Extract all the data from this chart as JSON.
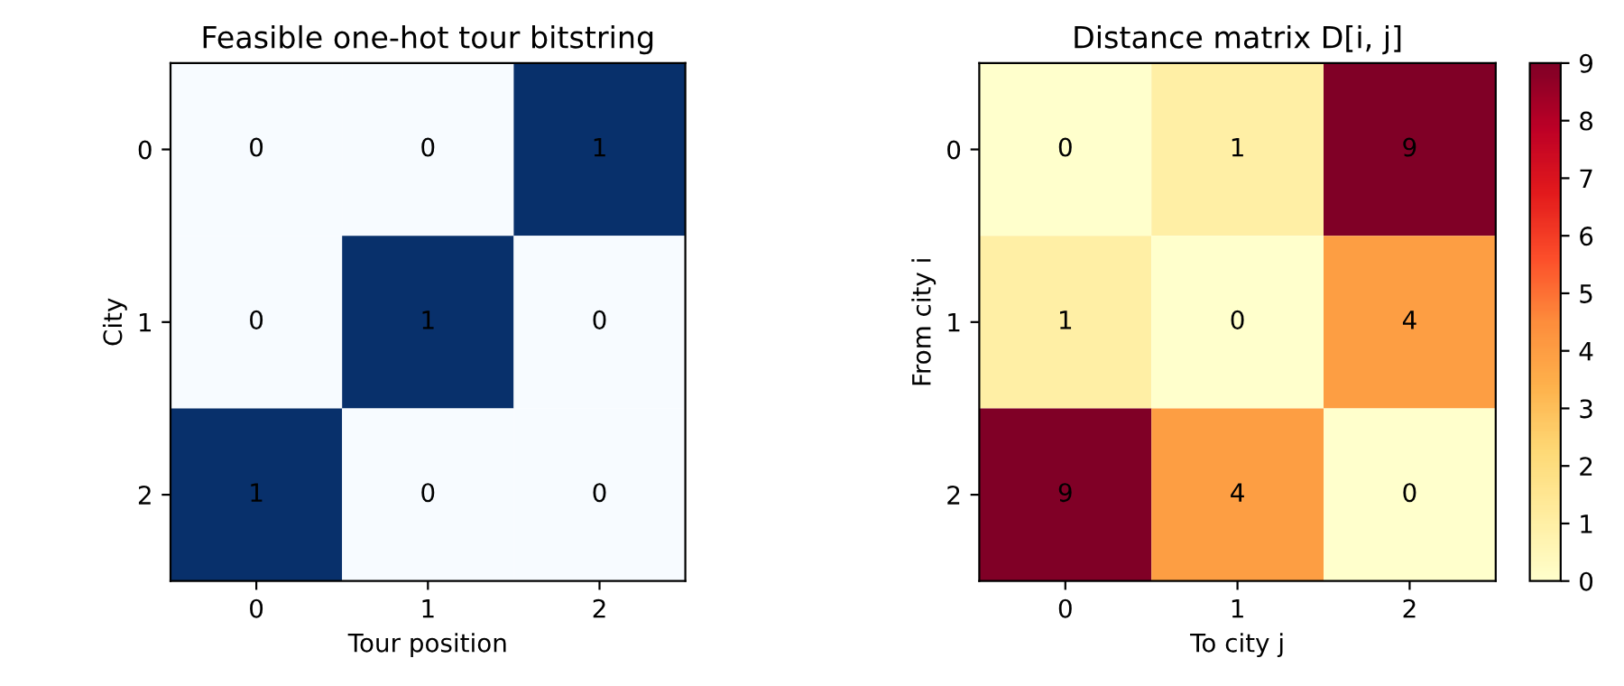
{
  "chart_data": [
    {
      "type": "heatmap",
      "title": "Feasible one-hot tour bitstring",
      "xlabel": "Tour position",
      "ylabel": "City",
      "categories": [
        "0",
        "1",
        "2"
      ],
      "y_categories": [
        "0",
        "1",
        "2"
      ],
      "cells": [
        [
          0,
          0,
          1
        ],
        [
          0,
          1,
          0
        ],
        [
          1,
          0,
          0
        ]
      ],
      "data_labels": true
    },
    {
      "type": "heatmap",
      "title": "Distance matrix D[i, j]",
      "xlabel": "To city j",
      "ylabel": "From city i",
      "categories": [
        "0",
        "1",
        "2"
      ],
      "y_categories": [
        "0",
        "1",
        "2"
      ],
      "cells": [
        [
          0,
          1,
          9
        ],
        [
          1,
          0,
          4
        ],
        [
          9,
          4,
          0
        ]
      ],
      "data_labels": true,
      "clim": [
        0,
        9
      ],
      "cticks": [
        0,
        1,
        2,
        3,
        4,
        5,
        6,
        7,
        8,
        9
      ]
    }
  ]
}
